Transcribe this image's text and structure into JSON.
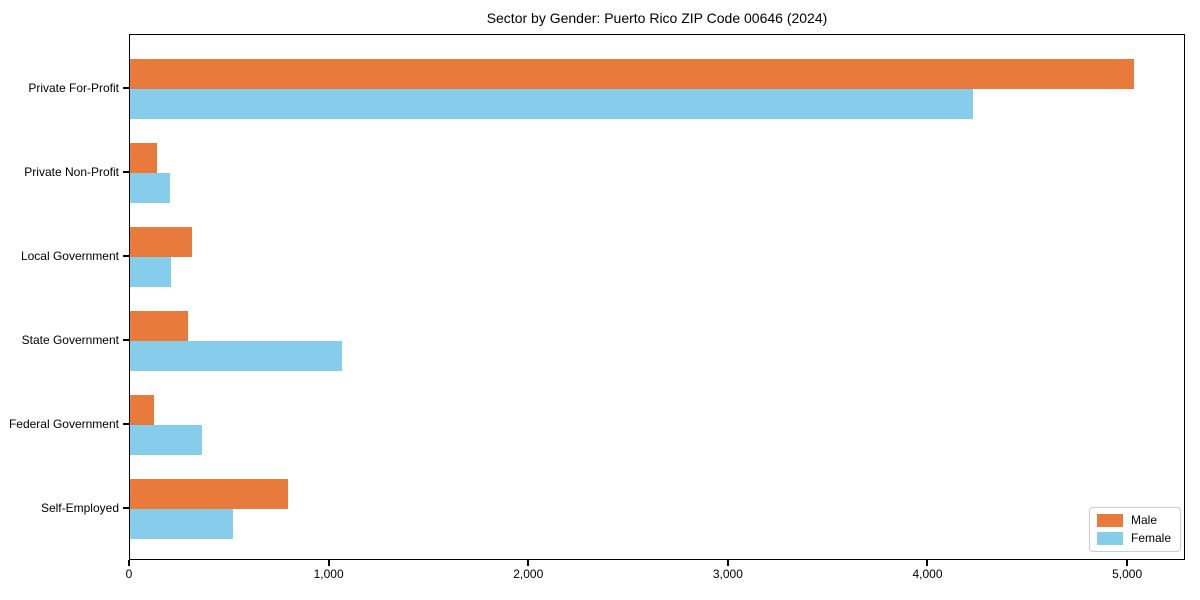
{
  "title": "Sector by Gender: Puerto Rico ZIP Code 00646 (2024)",
  "colors": {
    "male": "#e87a3c",
    "female": "#85cdea",
    "axis": "#000000",
    "legend_border": "#cccccc",
    "background": "#ffffff"
  },
  "chart_data": {
    "type": "bar",
    "orientation": "horizontal",
    "title": "Sector by Gender: Puerto Rico ZIP Code 00646 (2024)",
    "categories": [
      "Private For-Profit",
      "Private Non-Profit",
      "Local Government",
      "State Government",
      "Federal Government",
      "Self-Employed"
    ],
    "series": [
      {
        "name": "Male",
        "color": "#e87a3c",
        "values": [
          5040,
          135,
          310,
          290,
          120,
          795
        ]
      },
      {
        "name": "Female",
        "color": "#85cdea",
        "values": [
          4230,
          200,
          205,
          1065,
          360,
          515
        ]
      }
    ],
    "xlabel": "",
    "ylabel": "",
    "xlim": [
      0,
      5290
    ],
    "xticks": [
      0,
      1000,
      2000,
      3000,
      4000,
      5000
    ],
    "xtick_labels": [
      "0",
      "1,000",
      "2,000",
      "3,000",
      "4,000",
      "5,000"
    ],
    "grid": false,
    "legend_position": "lower right",
    "legend_labels": [
      "Male",
      "Female"
    ]
  }
}
